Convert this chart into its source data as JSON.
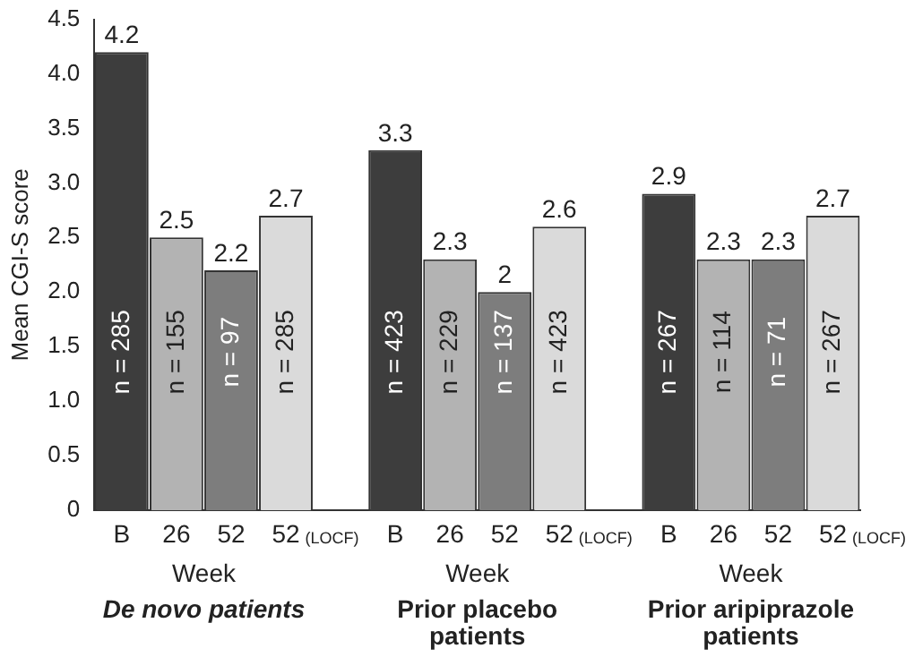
{
  "chart_data": {
    "type": "bar",
    "ylabel": "Mean CGI-S score",
    "categories": [
      "B",
      "26",
      "52",
      "52 (LOCF)",
      null,
      "B",
      "26",
      "52",
      "52 (LOCF)",
      null,
      "B",
      "26",
      "52",
      "52 (LOCF)"
    ],
    "values": [
      4.2,
      2.5,
      2.2,
      2.7,
      null,
      3.3,
      2.3,
      2,
      2.6,
      null,
      2.9,
      2.3,
      2.3,
      2.7
    ],
    "colors": [
      "#3d3d3d",
      "#b3b3b3",
      "#7d7d7d",
      "#dadada",
      null,
      "#3d3d3d",
      "#b3b3b3",
      "#7d7d7d",
      "#dadada",
      null,
      "#3d3d3d",
      "#b3b3b3",
      "#7d7d7d",
      "#dadada"
    ],
    "ylim": [
      0,
      4.5
    ],
    "yticks": [
      0,
      0.5,
      {
        "value": 1,
        "label": "1.0"
      },
      1.5,
      {
        "value": 2,
        "label": "2.0"
      },
      2.5,
      {
        "value": 3,
        "label": "3.0"
      },
      3.5,
      {
        "value": 4,
        "label": "4.0"
      },
      4.5
    ],
    "data_labels": true,
    "grid": false,
    "legend": false,
    "annotations": [
      "n = 285",
      "n = 155",
      "n = 97",
      "n = 285",
      "n = 423",
      "n = 229",
      "n = 137",
      "n = 423",
      "n = 267",
      "n = 114",
      "n = 71",
      "n = 267",
      "Week",
      "Week",
      "Week",
      "De novo patients",
      "Prior placebo patients",
      "Prior aripiprazole patients"
    ]
  }
}
